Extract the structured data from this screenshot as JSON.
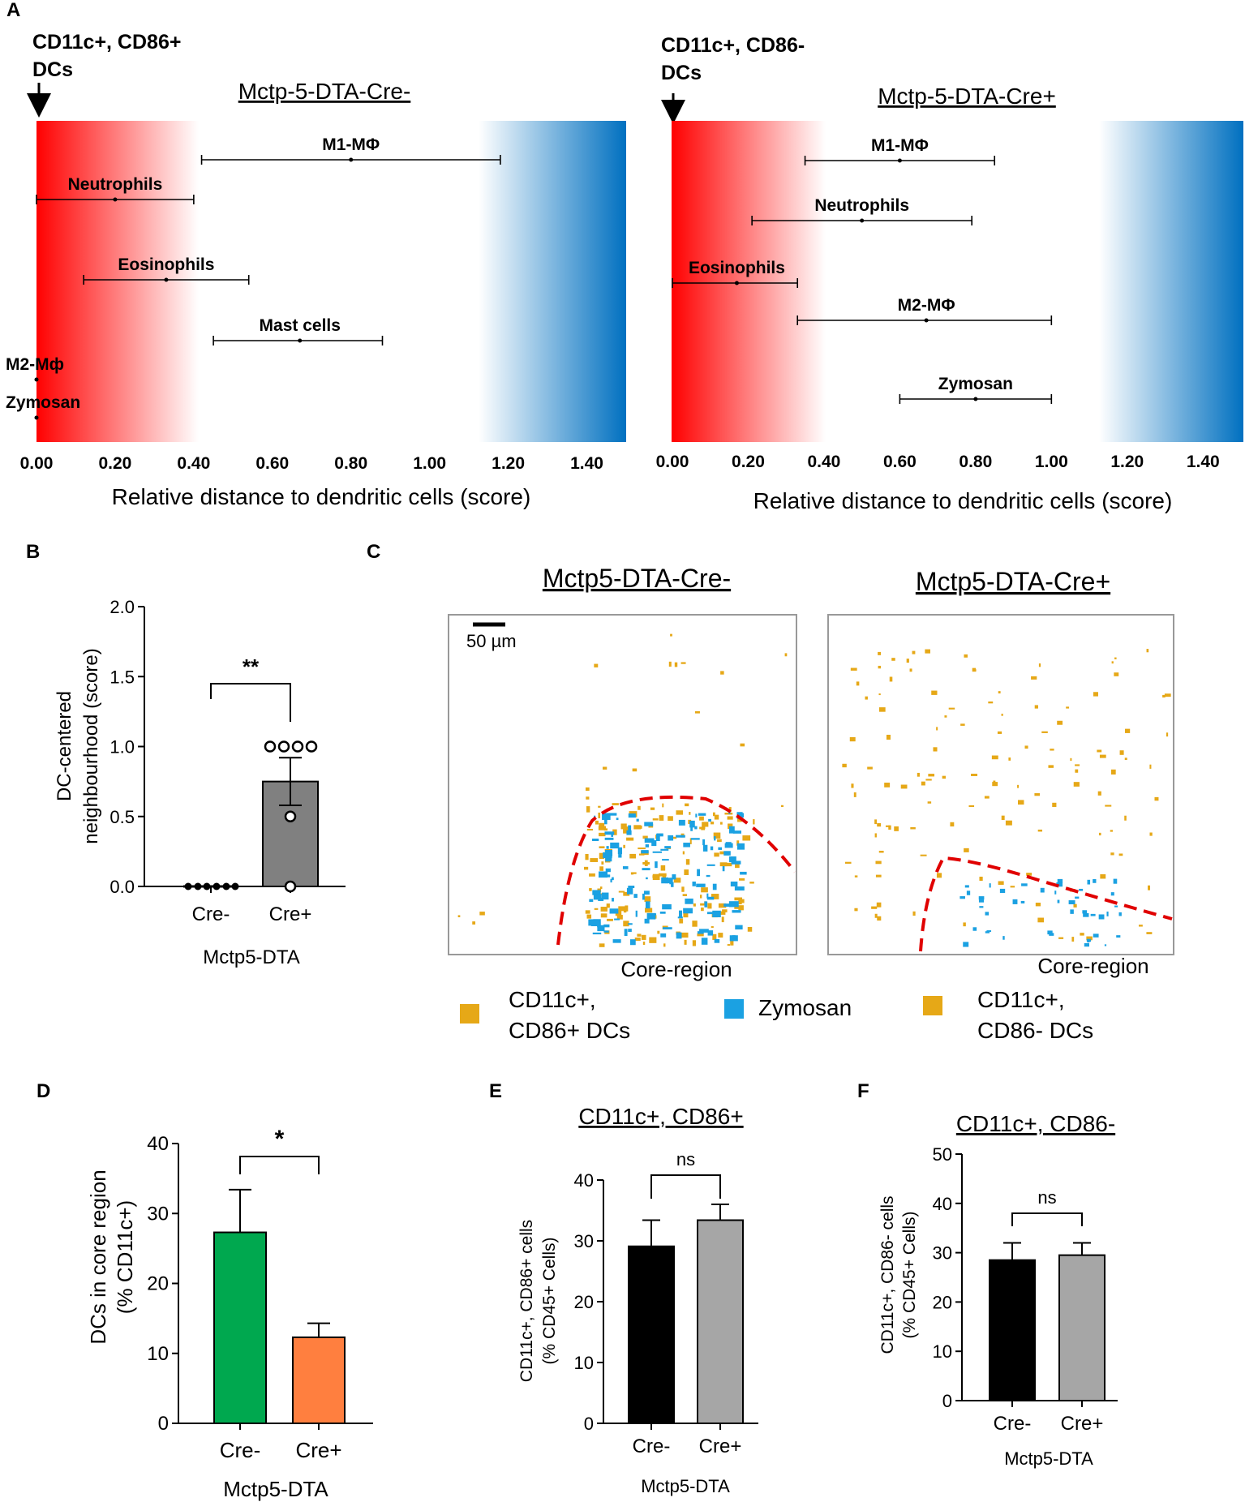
{
  "panel_labels": [
    "A",
    "B",
    "C",
    "D",
    "E",
    "F"
  ],
  "chart_data": [
    {
      "id": "A-left",
      "type": "range",
      "title": "Mctp-5-DTA-Cre-",
      "marker_label": [
        "CD11c+, CD86+",
        "DCs"
      ],
      "xlabel": "Relative distance to dendritic cells (score)",
      "xlim": [
        0,
        1.5
      ],
      "ticks": [
        "0.00",
        "0.20",
        "0.40",
        "0.60",
        "0.80",
        "1.00",
        "1.20",
        "1.40"
      ],
      "gradient": {
        "left_color": "#ff0000",
        "right_color": "#0070c0"
      },
      "series": [
        {
          "name": "M1-MΦ",
          "center": 0.8,
          "low": 0.42,
          "high": 1.18
        },
        {
          "name": "Neutrophils",
          "center": 0.2,
          "low": 0.0,
          "high": 0.4
        },
        {
          "name": "Eosinophils",
          "center": 0.33,
          "low": 0.12,
          "high": 0.54
        },
        {
          "name": "Mast cells",
          "center": 0.67,
          "low": 0.45,
          "high": 0.88
        },
        {
          "name": "M2-Mф",
          "center": 0.0,
          "low": 0.0,
          "high": 0.0
        },
        {
          "name": "Zymosan",
          "center": 0.0,
          "low": 0.0,
          "high": 0.0
        }
      ]
    },
    {
      "id": "A-right",
      "type": "range",
      "title": "Mctp-5-DTA-Cre+",
      "marker_label": [
        "CD11c+, CD86-",
        "DCs"
      ],
      "xlabel": "Relative distance to dendritic cells (score)",
      "xlim": [
        0,
        1.5
      ],
      "ticks": [
        "0.00",
        "0.20",
        "0.40",
        "0.60",
        "0.80",
        "1.00",
        "1.20",
        "1.40"
      ],
      "gradient": {
        "left_color": "#ff0000",
        "right_color": "#0070c0"
      },
      "series": [
        {
          "name": "M1-MΦ",
          "center": 0.6,
          "low": 0.35,
          "high": 0.85
        },
        {
          "name": "Neutrophils",
          "center": 0.5,
          "low": 0.21,
          "high": 0.79
        },
        {
          "name": "Eosinophils",
          "center": 0.17,
          "low": 0.0,
          "high": 0.33
        },
        {
          "name": "M2-MΦ",
          "center": 0.67,
          "low": 0.33,
          "high": 1.0
        },
        {
          "name": "Zymosan",
          "center": 0.8,
          "low": 0.6,
          "high": 1.0
        }
      ]
    },
    {
      "id": "B",
      "type": "bar",
      "ylabel": [
        "DC-centered",
        "neighbourhood (score)"
      ],
      "xlabel": "Mctp5-DTA",
      "categories": [
        "Cre-",
        "Cre+"
      ],
      "values": [
        0.0,
        0.75
      ],
      "errors": [
        0.0,
        0.17
      ],
      "points": [
        [
          0,
          0,
          0,
          0,
          0,
          0
        ],
        [
          1,
          1,
          1,
          1,
          0.5,
          0
        ]
      ],
      "ylim": [
        0,
        2.0
      ],
      "yticks": [
        "0.0",
        "0.5",
        "1.0",
        "1.5",
        "2.0"
      ],
      "bar_colors": [
        "#ffffff",
        "#808080"
      ],
      "significance": "**"
    },
    {
      "id": "D",
      "type": "bar",
      "ylabel": [
        "DCs in core region",
        "(% CD11c+)"
      ],
      "xlabel": "Mctp5-DTA",
      "categories": [
        "Cre-",
        "Cre+"
      ],
      "values": [
        27.3,
        12.3
      ],
      "errors": [
        6.1,
        2.0
      ],
      "ylim": [
        0,
        40
      ],
      "yticks": [
        "0",
        "10",
        "20",
        "30",
        "40"
      ],
      "bar_colors": [
        "#00a84f",
        "#ff7f3f"
      ],
      "significance": "*"
    },
    {
      "id": "E",
      "type": "bar",
      "title": "CD11c+, CD86+",
      "ylabel": [
        "CD11c+, CD86+ cells",
        "(% CD45+ Cells)"
      ],
      "xlabel": "Mctp5-DTA",
      "categories": [
        "Cre-",
        "Cre+"
      ],
      "values": [
        29.1,
        33.4
      ],
      "errors": [
        4.3,
        2.6
      ],
      "ylim": [
        0,
        40
      ],
      "yticks": [
        "0",
        "10",
        "20",
        "30",
        "40"
      ],
      "bar_colors": [
        "#000000",
        "#a6a6a6"
      ],
      "significance": "ns"
    },
    {
      "id": "F",
      "type": "bar",
      "title": "CD11c+, CD86-",
      "ylabel": [
        "CD11c+, CD86- cells",
        "(% CD45+ Cells)"
      ],
      "xlabel": "Mctp5-DTA",
      "categories": [
        "Cre-",
        "Cre+"
      ],
      "values": [
        28.5,
        29.5
      ],
      "errors": [
        3.5,
        2.5
      ],
      "ylim": [
        0,
        50
      ],
      "yticks": [
        "0",
        "10",
        "20",
        "30",
        "40",
        "50"
      ],
      "bar_colors": [
        "#000000",
        "#a6a6a6"
      ],
      "significance": "ns"
    }
  ],
  "panelC": {
    "titles": [
      "Mctp5-DTA-Cre-",
      "Mctp5-DTA-Cre+"
    ],
    "scale_bar": "50 µm",
    "region_label": "Core-region",
    "legend": [
      {
        "label": [
          "CD11c+,",
          "CD86+ DCs"
        ],
        "color": "#e6a817"
      },
      {
        "label": [
          "Zymosan"
        ],
        "color": "#1ba1e2"
      },
      {
        "label": [
          "CD11c+,",
          "CD86- DCs"
        ],
        "color": "#e6a817"
      }
    ]
  }
}
